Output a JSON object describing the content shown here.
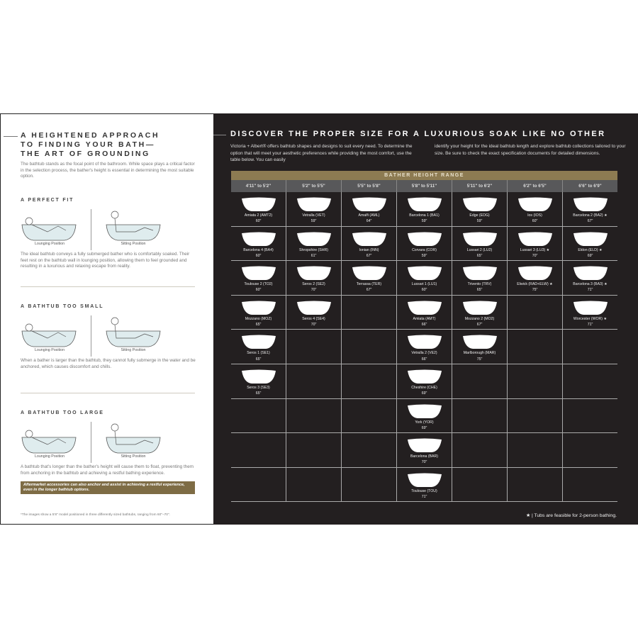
{
  "left": {
    "title": "A HEIGHTENED APPROACH TO FINDING YOUR BATH— THE ART OF GROUNDING",
    "intro": "The bathtub stands as the focal point of the bathroom. While space plays a critical factor in the selection process, the bather's height is essential in determining the most suitable option.",
    "sections": [
      {
        "heading": "A PERFECT FIT",
        "lounging": "Lounging Position",
        "sitting": "Sitting Position",
        "text": "The ideal bathtub conveys a fully submerged bather who is comfortably soaked. Their feet rest on the bathtub wall in lounging position, allowing them to feel grounded and resulting in a luxurious and relaxing escape from reality."
      },
      {
        "heading": "A BATHTUB TOO SMALL",
        "lounging": "Lounging Position",
        "sitting": "Sitting Position",
        "text": "When a bather is larger than the bathtub, they cannot fully submerge in the water and be anchored, which causes discomfort and chills."
      },
      {
        "heading": "A BATHTUB TOO LARGE",
        "lounging": "Lounging Position",
        "sitting": "Sitting Position",
        "text": "A bathtub that's longer than the bather's height will cause them to float, preventing them from anchoring in the bathtub and achieving a restful bathing experience."
      }
    ],
    "note": "Aftermarket accessories can also anchor and assist in achieving a restful experience, even in the longer bathtub options.",
    "footnote": "*The images show a 5'8\" model positioned in three differently sized bathtubs, ranging from 60\"–70\"."
  },
  "right": {
    "title": "DISCOVER THE PROPER SIZE FOR A LUXURIOUS SOAK LIKE NO OTHER",
    "para1": "Victoria + Albert® offers bathtub shapes and designs to suit every need. To determine the option that will meet your aesthetic preferences while providing the most comfort, use the table below. You can easily",
    "para2": "identify your height for the ideal bathtub length and explore bathtub collections tailored to your size. Be sure to check the exact specification documents for detailed dimensions.",
    "table_title": "BATHER HEIGHT RANGE",
    "columns": [
      {
        "label": "4'11\" to 5'2\"",
        "tubs": [
          {
            "name": "Amiata 2 (AMT2)",
            "size": "60\""
          },
          {
            "name": "Barcelona 4 (BA4)",
            "size": "60\""
          },
          {
            "name": "Toulouse 2 (TO2)",
            "size": "60\""
          },
          {
            "name": "Mozzano (MOZ)",
            "size": "65\""
          },
          {
            "name": "Seros 1 (SE1)",
            "size": "65\""
          },
          {
            "name": "Seros 3 (SE3)",
            "size": "65\""
          }
        ]
      },
      {
        "label": "5'2\" to 5'5\"",
        "tubs": [
          {
            "name": "Vetralla (VET)",
            "size": "59\""
          },
          {
            "name": "Shropshire (SHR)",
            "size": "61\""
          },
          {
            "name": "Seros 2 (SE2)",
            "size": "70\""
          },
          {
            "name": "Seros 4 (SE4)",
            "size": "70\""
          }
        ]
      },
      {
        "label": "5'5\" to 5'8\"",
        "tubs": [
          {
            "name": "Amalfi (AML)",
            "size": "64\""
          },
          {
            "name": "Ionian (INN)",
            "size": "67\""
          },
          {
            "name": "Terrassa (TER)",
            "size": "67\""
          }
        ]
      },
      {
        "label": "5'8\" to 5'11\"",
        "tubs": [
          {
            "name": "Barcelona 1 (BA1)",
            "size": "59\""
          },
          {
            "name": "Corvara (COR)",
            "size": "59\""
          },
          {
            "name": "Lussari 1 (LU1)",
            "size": "60\""
          },
          {
            "name": "Amiata (AMT)",
            "size": "66\""
          },
          {
            "name": "Vetralla 2 (VE2)",
            "size": "66\""
          },
          {
            "name": "Cheshire (CHE)",
            "size": "69\""
          },
          {
            "name": "York (YOR)",
            "size": "69\""
          },
          {
            "name": "Barcelona (BAR)",
            "size": "70\""
          },
          {
            "name": "Toulouse (TOU)",
            "size": "71\""
          }
        ]
      },
      {
        "label": "5'11\" to 6'2\"",
        "tubs": [
          {
            "name": "Edge (EDG)",
            "size": "59\""
          },
          {
            "name": "Lussari 2 (LU2)",
            "size": "65\""
          },
          {
            "name": "Trivento (TRV)",
            "size": "65\""
          },
          {
            "name": "Mozzano 2 (MO2)",
            "size": "67\""
          },
          {
            "name": "Marlborough (MAR)",
            "size": "75\""
          }
        ]
      },
      {
        "label": "6'2\" to 6'5\"",
        "tubs": [
          {
            "name": "Ios (IOS)",
            "size": "60\""
          },
          {
            "name": "Lussari 3 (LU3) ★",
            "size": "70\""
          },
          {
            "name": "Elwick (RAD+ELW) ★",
            "size": "75\""
          }
        ]
      },
      {
        "label": "6'6\" to 6'9\"",
        "tubs": [
          {
            "name": "Barcelona 2 (BA2) ★",
            "size": "67\""
          },
          {
            "name": "Eldon (ELD) ★",
            "size": "69\""
          },
          {
            "name": "Barcelona 3 (BA3) ★",
            "size": "71\""
          },
          {
            "name": "Worcester (WOR) ★",
            "size": "71\""
          }
        ]
      }
    ],
    "legend": "★ | Tubs are feasible for 2-person bathing."
  },
  "colors": {
    "gold": "#8d7b52",
    "dark": "#231f20",
    "header_gray": "#58585a"
  }
}
